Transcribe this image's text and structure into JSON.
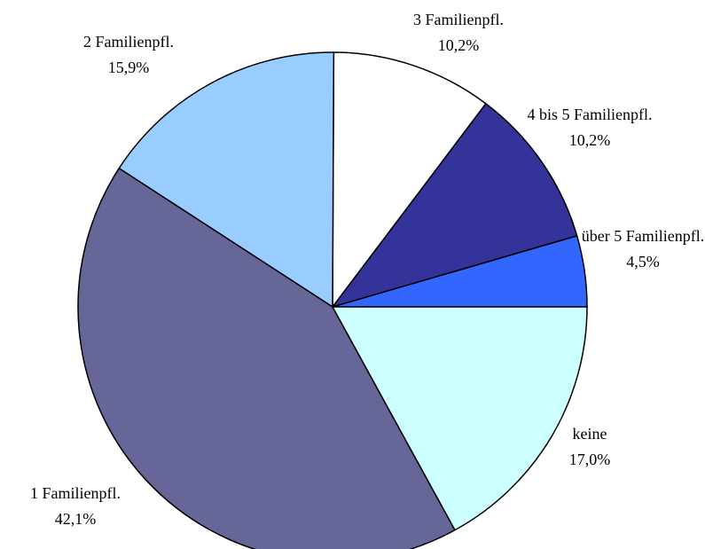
{
  "chart_data": {
    "type": "pie",
    "categories": [
      "über 5 Familienpfl.",
      "4 bis 5 Familienpfl.",
      "3 Familienpfl.",
      "2 Familienpfl.",
      "1 Familienpfl.",
      "keine"
    ],
    "values": [
      4.5,
      10.2,
      10.2,
      15.9,
      42.1,
      17.0
    ],
    "value_labels": [
      "4,5%",
      "10,2%",
      "10,2%",
      "15,9%",
      "42,1%",
      "17,0%"
    ],
    "colors": [
      "#3366ff",
      "#333399",
      "#ffffff",
      "#99ccff",
      "#666699",
      "#ccffff"
    ]
  }
}
